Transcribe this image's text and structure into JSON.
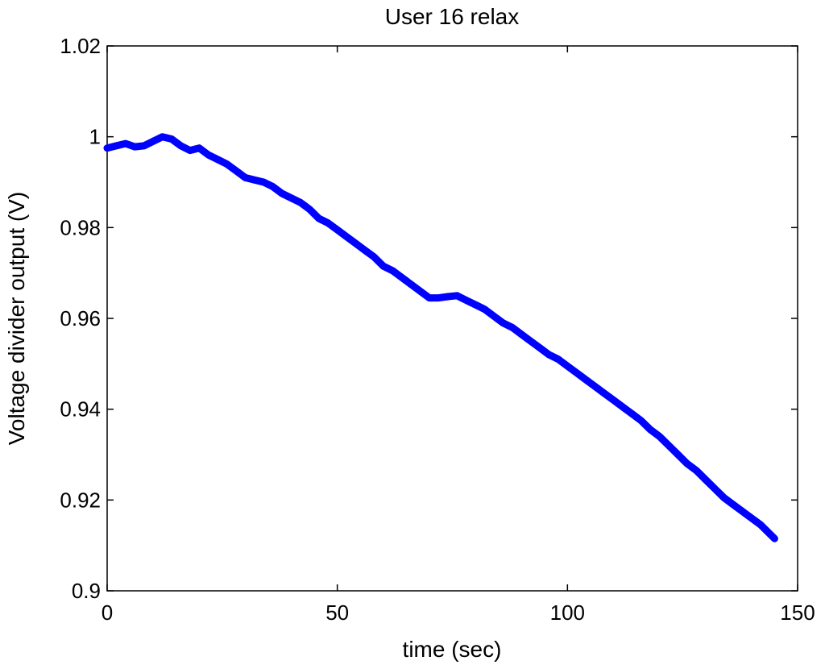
{
  "chart_data": {
    "type": "line",
    "title": "User 16 relax",
    "xlabel": "time (sec)",
    "ylabel": "Voltage divider output (V)",
    "xlim": [
      0,
      150
    ],
    "ylim": [
      0.9,
      1.02
    ],
    "xticks": [
      0,
      50,
      100,
      150
    ],
    "xtick_labels": [
      "0",
      "50",
      "100",
      "150"
    ],
    "yticks": [
      0.9,
      0.92,
      0.94,
      0.96,
      0.98,
      1.0,
      1.02
    ],
    "ytick_labels": [
      "0.9",
      "0.92",
      "0.94",
      "0.96",
      "0.98",
      "1",
      "1.02"
    ],
    "grid": false,
    "series": [
      {
        "color": "#0000ff",
        "x": [
          0,
          2,
          4,
          6,
          8,
          10,
          12,
          14,
          16,
          18,
          20,
          22,
          24,
          26,
          28,
          30,
          32,
          34,
          36,
          38,
          40,
          42,
          44,
          46,
          48,
          50,
          52,
          54,
          56,
          58,
          60,
          62,
          64,
          66,
          68,
          70,
          72,
          74,
          76,
          78,
          80,
          82,
          84,
          86,
          88,
          90,
          92,
          94,
          96,
          98,
          100,
          102,
          104,
          106,
          108,
          110,
          112,
          114,
          116,
          118,
          120,
          122,
          124,
          126,
          128,
          130,
          132,
          134,
          136,
          138,
          140,
          142,
          144,
          145
        ],
        "y": [
          0.9975,
          0.998,
          0.9985,
          0.9978,
          0.998,
          0.999,
          1.0,
          0.9995,
          0.998,
          0.997,
          0.9975,
          0.996,
          0.995,
          0.994,
          0.9925,
          0.991,
          0.9905,
          0.99,
          0.989,
          0.9875,
          0.9865,
          0.9855,
          0.984,
          0.982,
          0.981,
          0.9795,
          0.978,
          0.9765,
          0.975,
          0.9735,
          0.9715,
          0.9705,
          0.969,
          0.9675,
          0.966,
          0.9645,
          0.9645,
          0.9648,
          0.965,
          0.964,
          0.963,
          0.962,
          0.9605,
          0.959,
          0.958,
          0.9565,
          0.955,
          0.9535,
          0.952,
          0.951,
          0.9495,
          0.948,
          0.9465,
          0.945,
          0.9435,
          0.942,
          0.9405,
          0.939,
          0.9375,
          0.9355,
          0.934,
          0.932,
          0.93,
          0.928,
          0.9265,
          0.9245,
          0.9225,
          0.9205,
          0.919,
          0.9175,
          0.916,
          0.9145,
          0.9125,
          0.9115
        ]
      }
    ]
  }
}
